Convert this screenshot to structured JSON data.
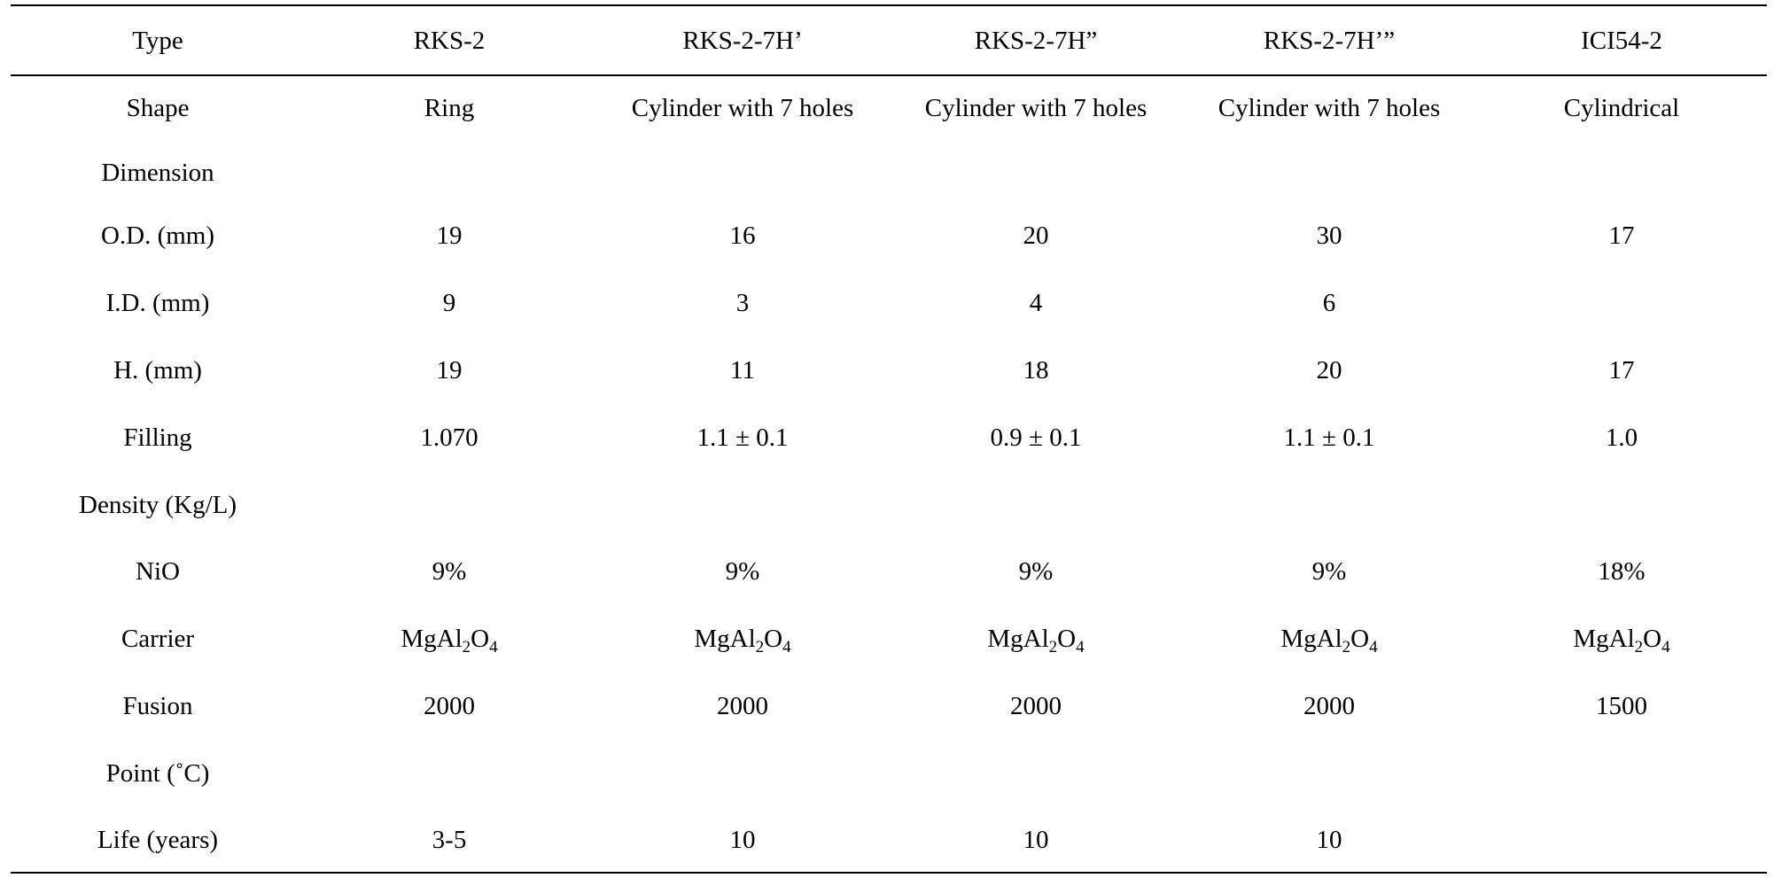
{
  "table": {
    "columns": [
      "Type",
      "RKS-2",
      "RKS-2-7H’",
      "RKS-2-7H”",
      "RKS-2-7H’”",
      "ICI54-2"
    ],
    "rows": [
      [
        "Shape",
        "Ring",
        "Cylinder with 7 holes",
        "Cylinder with 7 holes",
        "Cylinder with 7 holes",
        "Cylindrical"
      ],
      [
        "Dimension",
        "",
        "",
        "",
        "",
        ""
      ],
      [
        "O.D. (mm)",
        "19",
        "16",
        "20",
        "30",
        "17"
      ],
      [
        "I.D. (mm)",
        "9",
        "3",
        "4",
        "6",
        ""
      ],
      [
        "H. (mm)",
        "19",
        "11",
        "18",
        "20",
        "17"
      ],
      [
        "Filling",
        "1.070",
        "1.1 ± 0.1",
        "0.9 ± 0.1",
        "1.1 ± 0.1",
        "1.0"
      ],
      [
        "Density (Kg/L)",
        "",
        "",
        "",
        "",
        ""
      ],
      [
        "NiO",
        "9%",
        "9%",
        "9%",
        "9%",
        "18%"
      ],
      [
        "Carrier",
        "MgAl2O4",
        "MgAl2O4",
        "MgAl2O4",
        "MgAl2O4",
        "MgAl2O4"
      ],
      [
        "Fusion",
        "2000",
        "2000",
        "2000",
        "2000",
        "1500"
      ],
      [
        "Point (˚C)",
        "",
        "",
        "",
        "",
        ""
      ],
      [
        "Life (years)",
        "3-5",
        "10",
        "10",
        "10",
        ""
      ]
    ]
  }
}
